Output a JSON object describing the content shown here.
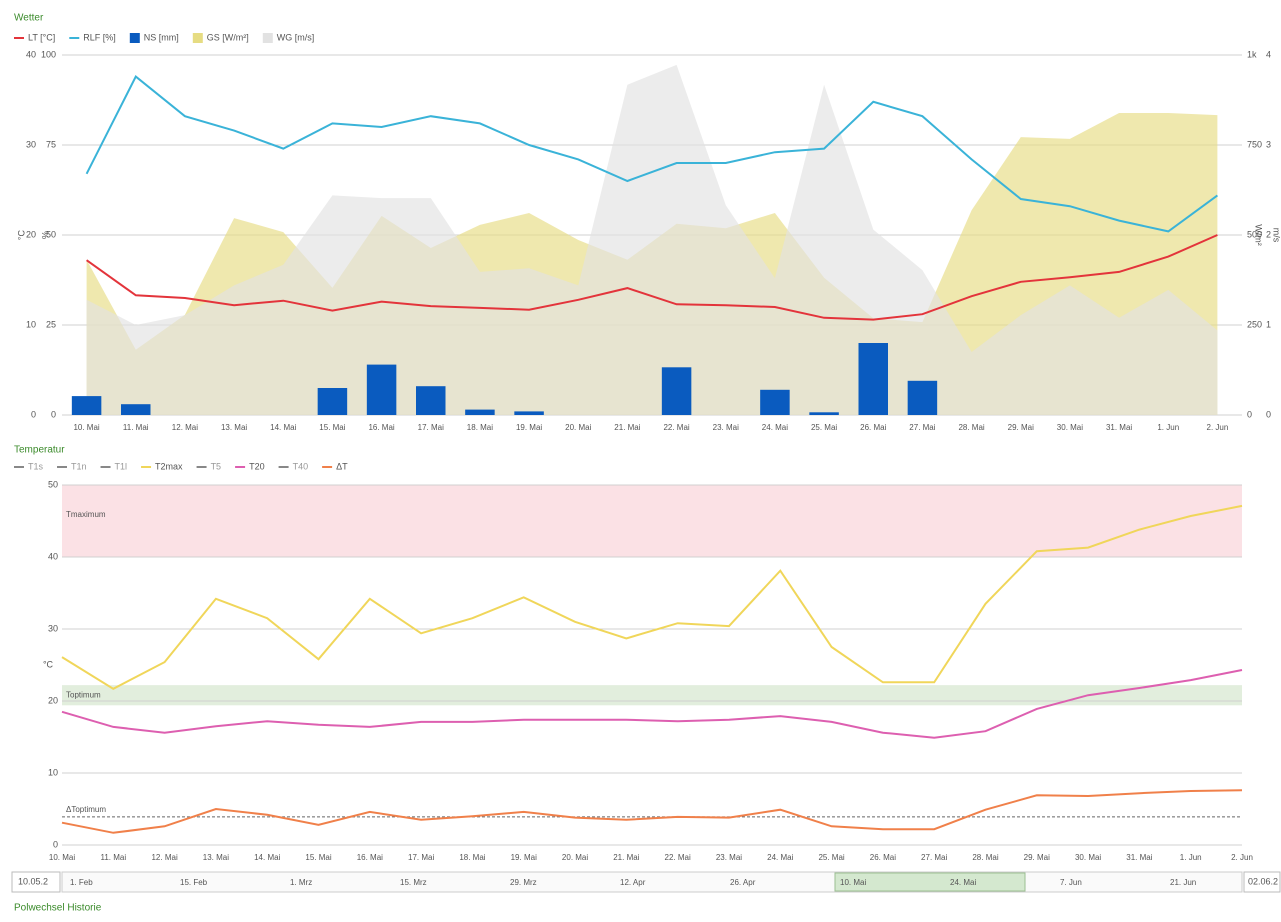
{
  "chart_data": [
    {
      "type": "combo",
      "title": "Wetter",
      "categories": [
        "10. Mai",
        "11. Mai",
        "12. Mai",
        "13. Mai",
        "14. Mai",
        "15. Mai",
        "16. Mai",
        "17. Mai",
        "18. Mai",
        "19. Mai",
        "20. Mai",
        "21. Mai",
        "22. Mai",
        "23. Mai",
        "24. Mai",
        "25. Mai",
        "26. Mai",
        "27. Mai",
        "28. Mai",
        "29. Mai",
        "30. Mai",
        "31. Mai",
        "1. Jun",
        "2. Jun"
      ],
      "ylim": [
        0,
        40
      ],
      "yticks": [
        0,
        10,
        20,
        30,
        40
      ],
      "y_label": "°C",
      "y3lim": [
        0,
        100
      ],
      "y3ticks": [
        0,
        25,
        50,
        75,
        100
      ],
      "y3_label": "%",
      "y2lim": [
        0,
        1000
      ],
      "y2ticks": [
        0,
        250,
        500,
        750,
        {
          "value": 1000,
          "label": "1k"
        }
      ],
      "y2_label": "W/m²",
      "y4lim": [
        0,
        4
      ],
      "y4ticks": [
        0,
        1,
        2,
        3,
        4
      ],
      "y4_label": "m/s",
      "grid": true,
      "series": [
        {
          "name": "LT [°C]",
          "color": "#e3343b",
          "kind": "line",
          "axis": "y",
          "values": [
            17.2,
            13.3,
            13.0,
            12.2,
            12.7,
            11.6,
            12.6,
            12.1,
            11.9,
            11.7,
            12.8,
            14.1,
            12.3,
            12.2,
            12.0,
            10.8,
            10.6,
            11.2,
            13.2,
            14.8,
            15.3,
            15.9,
            17.6,
            20.0
          ]
        },
        {
          "name": "RLF [%]",
          "color": "#3ab3d8",
          "kind": "line",
          "axis": "y3",
          "values": [
            67,
            94,
            83,
            79,
            74,
            81,
            80,
            83,
            81,
            75,
            71,
            65,
            70,
            70,
            73,
            74,
            87,
            83,
            71,
            60,
            58,
            54,
            51,
            61
          ]
        },
        {
          "name": "NS [mm]",
          "color": "#0a5bbf",
          "kind": "bar",
          "axis": "y",
          "values": [
            2.1,
            1.2,
            0,
            0,
            0,
            3.0,
            5.6,
            3.2,
            0.6,
            0.4,
            0,
            0,
            5.3,
            0,
            2.8,
            0.3,
            8.0,
            3.8,
            0,
            0,
            0,
            0,
            0,
            0
          ]
        },
        {
          "name": "GS [W/m²]",
          "color": "#e6dc82",
          "kind": "area",
          "axis": "y2",
          "values": [
            431,
            181,
            278,
            547,
            508,
            353,
            553,
            464,
            528,
            561,
            486,
            431,
            531,
            519,
            561,
            381,
            269,
            258,
            569,
            772,
            767,
            839,
            839,
            833
          ]
        },
        {
          "name": "WG [m/s]",
          "color": "#e2e2e2",
          "kind": "area",
          "axis": "y4",
          "values": [
            1.28,
            1.0,
            1.11,
            1.44,
            1.67,
            2.44,
            2.41,
            2.41,
            1.59,
            1.63,
            1.44,
            3.67,
            3.89,
            2.33,
            1.52,
            3.67,
            2.06,
            1.61,
            0.7,
            1.11,
            1.44,
            1.08,
            1.39,
            0.94
          ]
        }
      ]
    },
    {
      "type": "line",
      "title": "Temperatur",
      "categories": [
        "10. Mai",
        "11. Mai",
        "12. Mai",
        "13. Mai",
        "14. Mai",
        "15. Mai",
        "16. Mai",
        "17. Mai",
        "18. Mai",
        "19. Mai",
        "20. Mai",
        "21. Mai",
        "22. Mai",
        "23. Mai",
        "24. Mai",
        "25. Mai",
        "26. Mai",
        "27. Mai",
        "28. Mai",
        "29. Mai",
        "30. Mai",
        "31. Mai",
        "1. Jun",
        "2. Jun"
      ],
      "ylim": [
        0,
        50
      ],
      "yticks": [
        0,
        10,
        20,
        30,
        40,
        50
      ],
      "y_label": "°C",
      "grid": true,
      "bands": [
        {
          "label": "Tmaximum",
          "from": 40,
          "to": 50,
          "color": "#fbe1e5"
        },
        {
          "label": "Toptimum",
          "from": 19.4,
          "to": 22.2,
          "color": "#e2eedd"
        }
      ],
      "reference_line": {
        "label": "ΔToptimum",
        "value": 3.9,
        "color": "#666666"
      },
      "series": [
        {
          "name": "T1s",
          "color": "#888888",
          "visible": false
        },
        {
          "name": "T1n",
          "color": "#888888",
          "visible": false
        },
        {
          "name": "T1l",
          "color": "#888888",
          "visible": false
        },
        {
          "name": "T2max",
          "color": "#f0d65a",
          "visible": true,
          "values": [
            26.1,
            21.7,
            25.4,
            34.2,
            31.5,
            25.8,
            34.2,
            29.4,
            31.5,
            34.4,
            31.0,
            28.7,
            30.8,
            30.4,
            38.1,
            27.5,
            22.6,
            22.6,
            33.5,
            40.8,
            41.3,
            43.8,
            45.7,
            47.1
          ]
        },
        {
          "name": "T5",
          "color": "#888888",
          "visible": false
        },
        {
          "name": "T20",
          "color": "#dd5fb0",
          "visible": true,
          "values": [
            18.5,
            16.4,
            15.6,
            16.5,
            17.2,
            16.7,
            16.4,
            17.1,
            17.1,
            17.4,
            17.4,
            17.4,
            17.2,
            17.4,
            17.9,
            17.1,
            15.6,
            14.9,
            15.8,
            18.9,
            20.8,
            21.8,
            22.9,
            24.3
          ]
        },
        {
          "name": "T40",
          "color": "#888888",
          "visible": false
        },
        {
          "name": "ΔT",
          "color": "#f0804a",
          "visible": true,
          "values": [
            3.1,
            1.7,
            2.6,
            5.0,
            4.2,
            2.8,
            4.6,
            3.5,
            4.0,
            4.6,
            3.8,
            3.5,
            3.9,
            3.8,
            4.9,
            2.6,
            2.2,
            2.2,
            4.9,
            6.9,
            6.8,
            7.2,
            7.5,
            7.6
          ]
        }
      ]
    }
  ],
  "navigator": {
    "start_date": "10.05.2",
    "end_date": "02.06.2",
    "labels": [
      "1. Feb",
      "15. Feb",
      "1. Mrz",
      "15. Mrz",
      "29. Mrz",
      "12. Apr",
      "26. Apr",
      "10. Mai",
      "24. Mai",
      "7. Jun",
      "21. Jun"
    ]
  },
  "footer_title": "Polwechsel Historie"
}
